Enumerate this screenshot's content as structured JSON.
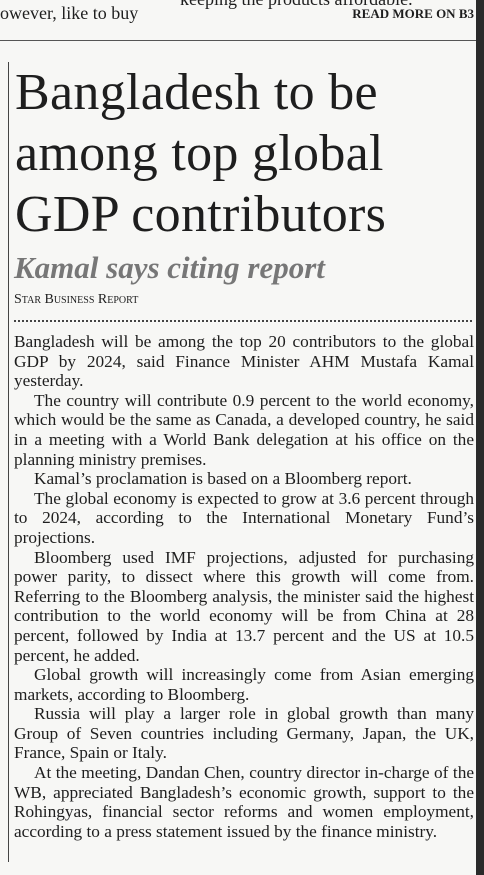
{
  "top_strip": {
    "left_fragment": "owever, like to buy",
    "middle_fragment": "keeping the products affordable.",
    "read_more": "READ MORE ON B3"
  },
  "article": {
    "headline": "Bangladesh to be among top global GDP contributors",
    "subhead": "Kamal says citing report",
    "byline": "Star Business Report",
    "paragraphs": [
      "Bangladesh will be among the top 20 contributors to the global GDP by 2024, said Finance Minister AHM Mustafa Kamal yesterday.",
      "The country will contribute 0.9 percent to the world economy, which would be the same as Canada, a developed country, he said in a meeting with a World Bank delegation at his office on the planning ministry premises.",
      "Kamal’s proclamation is based on a Bloomberg report.",
      "The global economy is expected to grow at 3.6 percent through to 2024, according to the International Monetary Fund’s projections.",
      "Bloomberg used IMF projections, adjusted for purchasing power parity, to dissect where this growth will come from. Referring to the Bloomberg analysis, the minister said the highest contribution to the world economy will be from China at 28 percent, followed by India at 13.7 percent and the US at 10.5 percent, he added.",
      "Global growth will increasingly come from Asian emerging markets, according to Bloomberg.",
      "Russia will play a larger role in global growth than many Group of Seven countries including Germany, Japan, the UK, France, Spain or Italy.",
      "At the meeting, Dandan Chen, country director in-charge of the WB, appreciated Bangladesh’s economic growth, support to the Rohingyas, financial sector reforms and women employment, according to a press statement issued by the finance ministry."
    ]
  }
}
